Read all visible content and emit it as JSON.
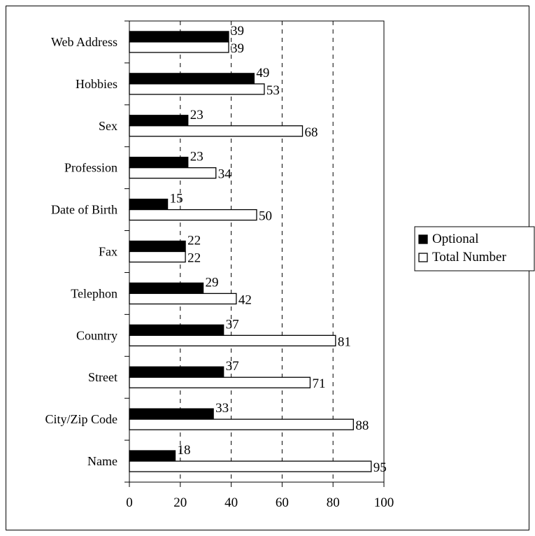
{
  "chart_data": {
    "type": "bar",
    "orientation": "horizontal",
    "categories": [
      "Name",
      "City/Zip Code",
      "Street",
      "Country",
      "Telephon",
      "Fax",
      "Date of Birth",
      "Profession",
      "Sex",
      "Hobbies",
      "Web Address"
    ],
    "series": [
      {
        "name": "Optional",
        "values": [
          18,
          33,
          37,
          37,
          29,
          22,
          15,
          23,
          23,
          49,
          39
        ],
        "color": "#000000"
      },
      {
        "name": "Total Number",
        "values": [
          95,
          88,
          71,
          81,
          42,
          22,
          50,
          34,
          68,
          53,
          39
        ],
        "color": "#ffffff"
      }
    ],
    "xlim": [
      0,
      100
    ],
    "xticks": [
      "0",
      "20",
      "40",
      "60",
      "80",
      "100"
    ],
    "title": "",
    "xlabel": "",
    "ylabel": "",
    "grid": "vertical dashed",
    "legend_position": "right"
  }
}
